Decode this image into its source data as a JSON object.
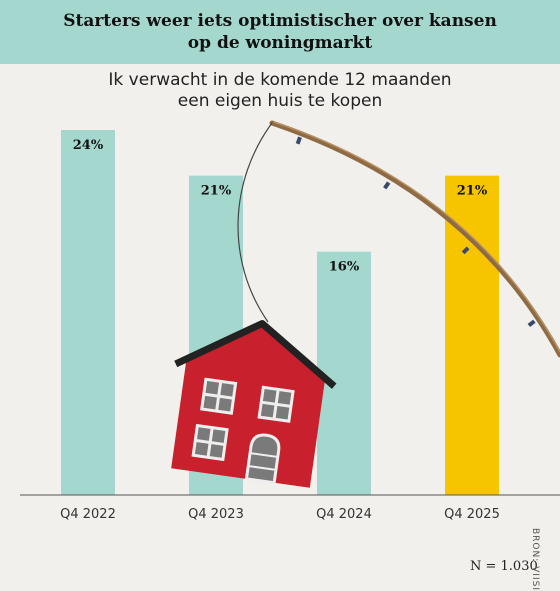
{
  "colors": {
    "bar": "#a4d8cf",
    "highlight": "#f7c500",
    "header": "#a4d8cf",
    "background": "#f2f0ec"
  },
  "source": "BRON: VIISI",
  "note": "N = 1.030",
  "chart_data": {
    "type": "bar",
    "title": "Starters weer iets optimistischer over kansen op de woningmarkt",
    "subtitle": [
      "Ik verwacht in de komende 12 maanden",
      "een eigen huis te kopen"
    ],
    "categories": [
      "Q4 2022",
      "Q4 2023",
      "Q4 2024",
      "Q4 2025"
    ],
    "values": [
      24,
      21,
      16,
      21
    ],
    "value_labels": [
      "24%",
      "21%",
      "16%",
      "21%"
    ],
    "highlight_index": 3,
    "ylim": [
      0,
      24
    ],
    "grid": false,
    "illustration": "red house hanging from a fishing rod"
  }
}
